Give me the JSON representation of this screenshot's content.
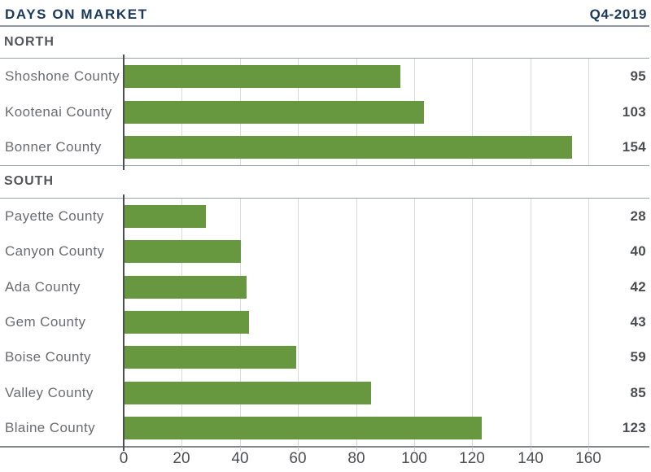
{
  "chart_data": {
    "type": "bar",
    "orientation": "horizontal",
    "title": "DAYS ON MARKET",
    "period": "Q4-2019",
    "xlabel": "",
    "ylabel": "",
    "xlim": [
      0,
      160
    ],
    "x_ticks": [
      0,
      20,
      40,
      60,
      80,
      100,
      120,
      140,
      160
    ],
    "grid": true,
    "legend": "none",
    "value_labels": "right-aligned",
    "groups": [
      {
        "label": "NORTH",
        "rows": [
          {
            "category": "Shoshone County",
            "value": 95
          },
          {
            "category": "Kootenai County",
            "value": 103
          },
          {
            "category": "Bonner County",
            "value": 154
          }
        ]
      },
      {
        "label": "SOUTH",
        "rows": [
          {
            "category": "Payette County",
            "value": 28
          },
          {
            "category": "Canyon County",
            "value": 40
          },
          {
            "category": "Ada County",
            "value": 42
          },
          {
            "category": "Gem County",
            "value": 43
          },
          {
            "category": "Boise County",
            "value": 59
          },
          {
            "category": "Valley County",
            "value": 85
          },
          {
            "category": "Blaine County",
            "value": 123
          }
        ]
      }
    ]
  },
  "colors": {
    "bar_green": "#67973f",
    "title_navy": "#1a3a5c",
    "gridline_gray": "#d8dadb",
    "axis_gray": "#4d4e51"
  }
}
